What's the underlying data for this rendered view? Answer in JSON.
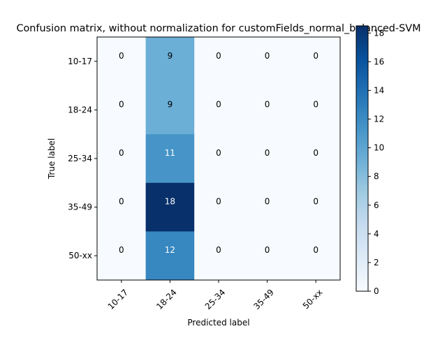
{
  "chart_data": {
    "type": "heatmap",
    "title": "Confusion matrix, without normalization for customFields_normal_balanced-SVM",
    "xlabel": "Predicted label",
    "ylabel": "True label",
    "x_categories": [
      "10-17",
      "18-24",
      "25-34",
      "35-49",
      "50-xx"
    ],
    "y_categories": [
      "10-17",
      "18-24",
      "25-34",
      "35-49",
      "50-xx"
    ],
    "matrix": [
      [
        0,
        9,
        0,
        0,
        0
      ],
      [
        0,
        9,
        0,
        0,
        0
      ],
      [
        0,
        11,
        0,
        0,
        0
      ],
      [
        0,
        18,
        0,
        0,
        0
      ],
      [
        0,
        12,
        0,
        0,
        0
      ]
    ],
    "colormap": "Blues",
    "colorbar": {
      "range": [
        0,
        18
      ],
      "ticks": [
        0,
        2,
        4,
        6,
        8,
        10,
        12,
        14,
        16,
        18
      ],
      "tick_labels": [
        "0",
        "2",
        "4",
        "6",
        "8",
        "10",
        "12",
        "14",
        "16",
        "18"
      ]
    },
    "x_tick_rotation_deg": 45,
    "colors": {
      "low": "#f7fbff",
      "high": "#08306b",
      "text_on_light": "#000000",
      "text_on_dark": "#ffffff"
    }
  }
}
